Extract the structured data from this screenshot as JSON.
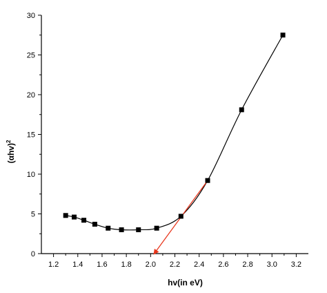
{
  "chart_data": {
    "type": "line",
    "title": "",
    "xlabel": "hv(in eV)",
    "ylabel": {
      "main": "(αhv)",
      "superscript": "2"
    },
    "xlim": [
      1.1,
      3.3
    ],
    "ylim": [
      0,
      30
    ],
    "x_ticks": [
      "1.2",
      "1.4",
      "1.6",
      "1.8",
      "2.0",
      "2.2",
      "2.4",
      "2.6",
      "2.8",
      "3.0",
      "3.2"
    ],
    "y_ticks": [
      "0",
      "5",
      "10",
      "15",
      "20",
      "25",
      "30"
    ],
    "grid": false,
    "legend": "none",
    "series": [
      {
        "marker": "square",
        "color": "#000000",
        "x": [
          1.3,
          1.37,
          1.45,
          1.54,
          1.65,
          1.76,
          1.9,
          2.05,
          2.25,
          2.47,
          2.75,
          3.09
        ],
        "y": [
          4.8,
          4.6,
          4.2,
          3.7,
          3.2,
          3.0,
          3.0,
          3.2,
          4.7,
          9.2,
          18.1,
          27.5
        ]
      }
    ],
    "annotations": [
      {
        "type": "extrapolation-arrow",
        "color": "#e8361c",
        "from": [
          2.47,
          9.2
        ],
        "to": [
          2.03,
          0.0
        ]
      }
    ]
  }
}
